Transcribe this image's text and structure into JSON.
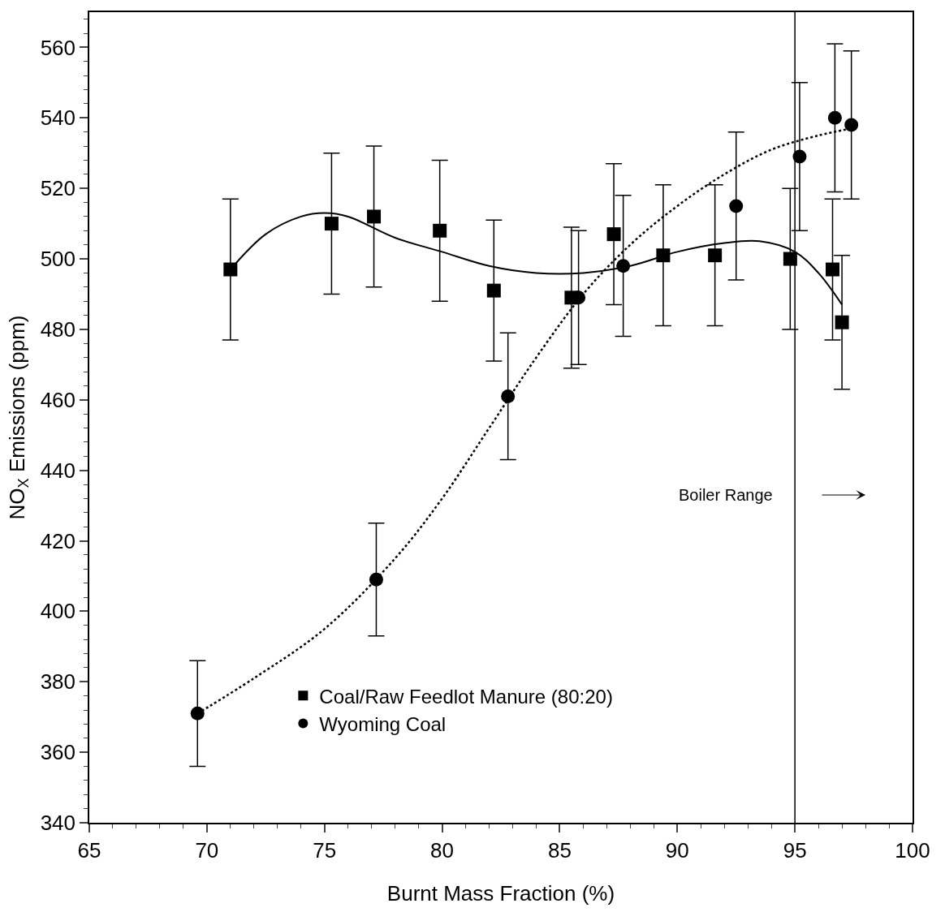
{
  "chart_data": {
    "type": "scatter",
    "xlabel": "Burnt Mass Fraction (%)",
    "ylabel": "NO$_{X}$ Emissions (ppm)",
    "xlim": [
      65,
      100
    ],
    "xticks": [
      65,
      70,
      75,
      80,
      85,
      90,
      95,
      100
    ],
    "ylim": [
      340,
      570
    ],
    "yticks": [
      340,
      360,
      380,
      400,
      420,
      440,
      460,
      480,
      500,
      520,
      540,
      560
    ],
    "legend": "bottom left",
    "series": [
      {
        "name": "Coal/Raw Feedlot Manure (80:20)",
        "color": "#000000",
        "marker": "square",
        "x": [
          71.0,
          75.3,
          77.1,
          79.9,
          82.2,
          85.5,
          87.3,
          89.4,
          91.6,
          94.8,
          96.6,
          97.0
        ],
        "values": [
          497,
          510,
          512,
          508,
          491,
          489,
          507,
          501,
          501,
          500,
          497,
          482
        ],
        "errors": [
          20,
          20,
          20,
          20,
          20,
          20,
          20,
          20,
          20,
          20,
          20,
          19
        ]
      },
      {
        "name": "Wyoming Coal",
        "color": "#000000",
        "marker": "circle",
        "x": [
          69.6,
          77.2,
          82.8,
          85.8,
          87.7,
          92.5,
          95.2,
          96.7,
          97.4
        ],
        "values": [
          371,
          409,
          461,
          489,
          498,
          515,
          529,
          540,
          538
        ],
        "errors": [
          15,
          16,
          18,
          19,
          20,
          21,
          21,
          21,
          21
        ]
      },
      {
        "type": "line",
        "color": "#000000",
        "line_style": "solid",
        "marker": "none",
        "x": [
          71,
          72.5,
          74,
          75,
          76,
          78,
          80,
          82,
          84,
          86,
          88,
          90,
          92,
          93.5,
          95,
          96,
          97
        ],
        "values": [
          497,
          507,
          512,
          513,
          512,
          506,
          502,
          498,
          496,
          496,
          498,
          502,
          504.5,
          505,
          502,
          496,
          487
        ]
      },
      {
        "type": "line",
        "color": "#000000",
        "line_style": "dotted",
        "marker": "none",
        "x": [
          69.6,
          72,
          75,
          78,
          80,
          82,
          84,
          86,
          88,
          90,
          92,
          94,
          96,
          97.4
        ],
        "values": [
          371,
          381,
          395,
          415,
          432,
          452,
          472,
          490,
          504,
          515,
          524,
          531,
          535,
          537
        ]
      }
    ],
    "ref_lines": [
      {
        "axis": "x",
        "value": 95,
        "label": "Boiler Range",
        "color": "#000000",
        "line_style": "solid"
      }
    ]
  }
}
